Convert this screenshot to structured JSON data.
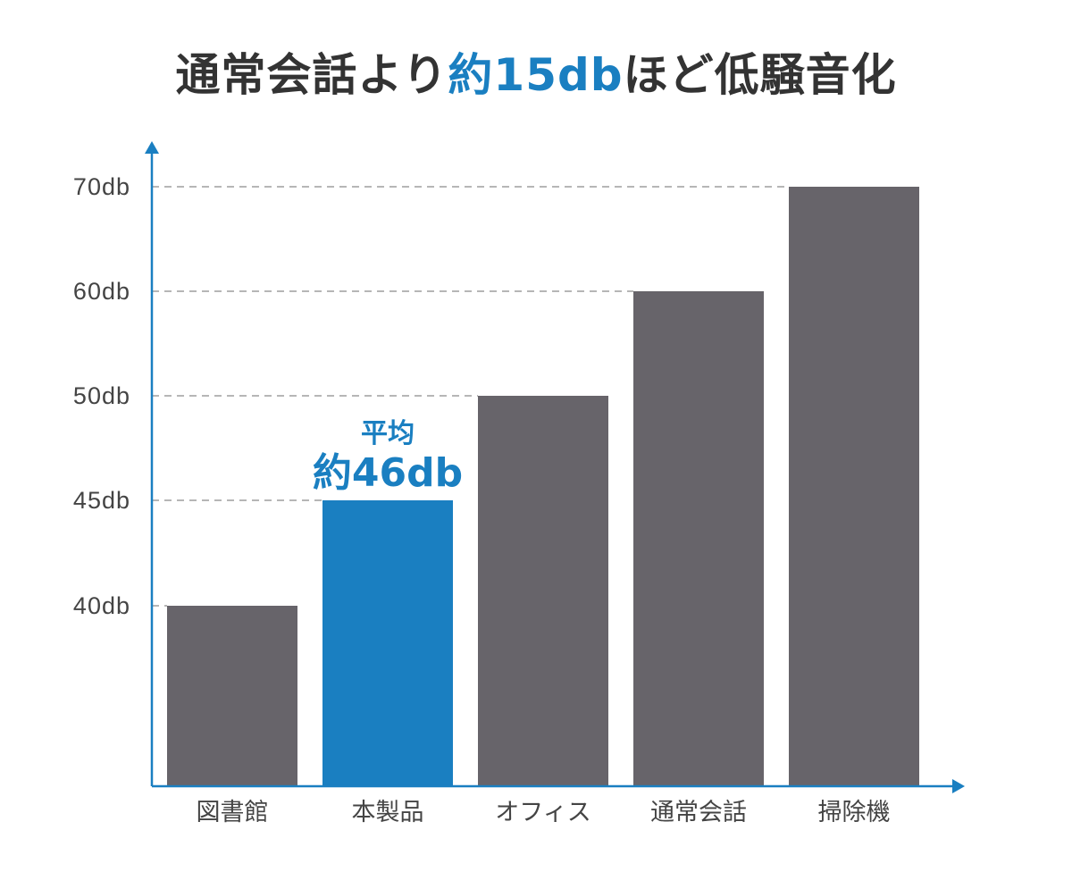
{
  "title": {
    "prefix": "通常会話より",
    "highlight": "約15db",
    "suffix": "ほど低騒音化"
  },
  "colors": {
    "highlight": "#1a7fc1",
    "bar": "#67646a",
    "axis": "#1a7fc1",
    "grid": "#8a8a8a"
  },
  "chart_data": {
    "type": "bar",
    "categories": [
      "図書館",
      "本製品",
      "オフィス",
      "通常会話",
      "掃除機"
    ],
    "values": [
      40,
      45,
      50,
      60,
      70
    ],
    "highlight_index": 1,
    "y_ticks": [
      {
        "value": 40,
        "label": "40db"
      },
      {
        "value": 45,
        "label": "45db"
      },
      {
        "value": 50,
        "label": "50db"
      },
      {
        "value": 60,
        "label": "60db"
      },
      {
        "value": 70,
        "label": "70db"
      }
    ],
    "grid": "dashed",
    "annotation": {
      "index": 1,
      "line1": "平均",
      "line2": "約46db"
    }
  }
}
